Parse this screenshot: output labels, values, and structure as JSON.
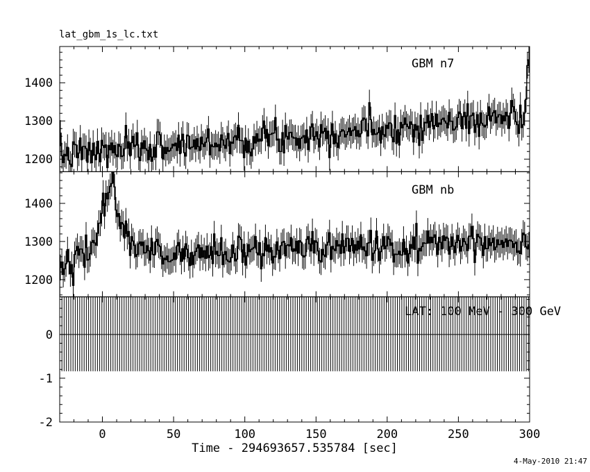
{
  "title": "lat_gbm_1s_lc.txt",
  "timestamp": "4-May-2010 21:47",
  "chart_data": {
    "type": "line",
    "title": "lat_gbm_1s_lc.txt",
    "xlabel": "Time - 294693657.535784 [sec]",
    "x_range": [
      -30,
      300
    ],
    "x_major_ticks": [
      0,
      50,
      100,
      150,
      200,
      250,
      300
    ],
    "x_minor_step": 10,
    "grid": false,
    "legend_position": "none",
    "line_color": "#000000",
    "background_color": "#ffffff",
    "panels": [
      {
        "label": "GBM n7",
        "style": "step-errorbar",
        "y_range": [
          1167,
          1495
        ],
        "y_major_ticks": [
          1200,
          1300,
          1400
        ],
        "y_minor_step": 20,
        "bin_sec": 1,
        "trend": {
          "start": 1210,
          "end": 1315
        },
        "noise_sigma": 21,
        "error_half": 34,
        "seed": 7,
        "end_spike": [
          1445,
          1460
        ]
      },
      {
        "label": "GBM nb",
        "style": "step-errorbar",
        "y_range": [
          1155,
          1483
        ],
        "y_major_ticks": [
          1200,
          1300,
          1400
        ],
        "y_minor_step": 20,
        "bin_sec": 1,
        "trend": {
          "start": 1252,
          "end": 1305
        },
        "burst": {
          "t_peak": 7,
          "amplitude": 185,
          "rise_sigma": 8,
          "decay_tau": 9
        },
        "noise_sigma": 21,
        "error_half": 34,
        "seed": 42
      },
      {
        "label": "LAT: 100 MeV - 300 GeV",
        "style": "errorbar-band",
        "y_range": [
          -2,
          0.86
        ],
        "y_major_ticks": [
          -2,
          -1,
          0
        ],
        "y_minor_step": 0.2,
        "band": {
          "low": -0.84,
          "high": 0.95,
          "spacing_sec": 1.56
        },
        "zero_line": 0
      }
    ],
    "timestamp": "4-May-2010 21:47"
  }
}
